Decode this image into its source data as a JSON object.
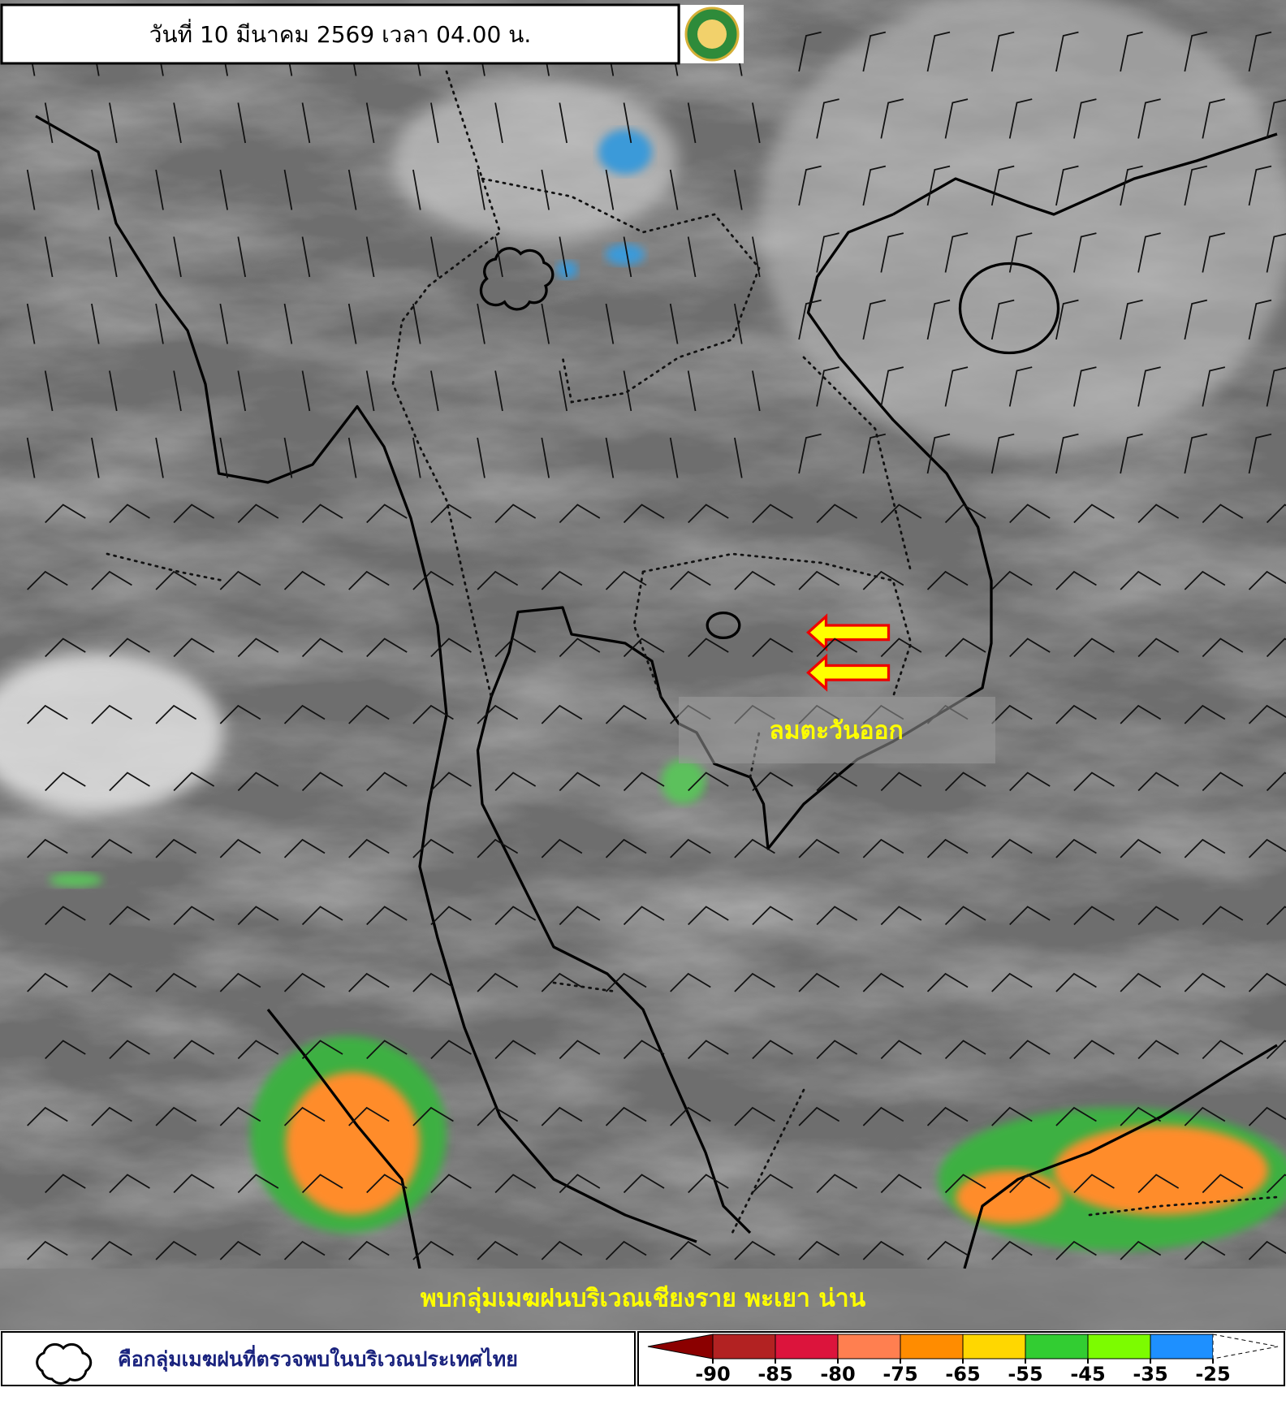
{
  "header": {
    "title": "วันที่ 10 มีนาคม 2569 เวลา 04.00 น."
  },
  "map": {
    "annotations": [
      "ลมตะวันออก"
    ],
    "caption": "พบกลุ่มเมฆฝนบริเวณเชียงราย พะเยา น่าน"
  },
  "legend": {
    "cloud_label": "คือกลุ่มเมฆฝนที่ตรวจพบในบริเวณประเทศไทย",
    "scale": {
      "colors": [
        "#8b0000",
        "#b22222",
        "#dc143c",
        "#ff7f50",
        "#ff8c00",
        "#ffd700",
        "#32cd32",
        "#7cfc00",
        "#1e90ff",
        "#ffffff"
      ],
      "ticks": [
        -90,
        -85,
        -80,
        -75,
        -65,
        -55,
        -45,
        -35,
        -25
      ]
    }
  }
}
